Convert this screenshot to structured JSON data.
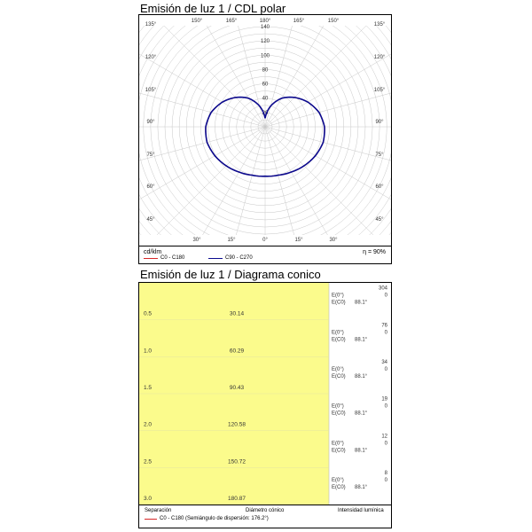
{
  "polar": {
    "title": "Emisión de luz 1 / CDL polar",
    "unit": "cd/klm",
    "efficiency": "η = 90%",
    "legend": [
      {
        "label": "C0 - C180",
        "color": "#d62728"
      },
      {
        "label": "C90 - C270",
        "color": "#0b0b8f"
      }
    ]
  },
  "cone": {
    "title": "Emisión de luz 1 / Diagrama conico",
    "footer": {
      "separation": "Separación",
      "diameter": "Diámetro cónico",
      "intensity": "Intensidad lumínica",
      "legend_label": "C0 - C180 (Semiángulo de dispersión: 176.2°)"
    },
    "e0_label": "E(0°)",
    "ec0_label": "E(C0)",
    "angle_label": "88.1°"
  },
  "chart_data": [
    {
      "type": "line",
      "subtype": "polar",
      "title": "Emisión de luz 1 / CDL polar",
      "radial_unit": "cd/klm",
      "radial_ticks": [
        20,
        40,
        60,
        80,
        100,
        120,
        140
      ],
      "rlim": [
        0,
        140
      ],
      "grid": true,
      "angle_labels": {
        "left": [
          "135°",
          "120°",
          "105°",
          "90°",
          "75°",
          "60°",
          "45°"
        ],
        "right": [
          "135°",
          "120°",
          "105°",
          "90°",
          "75°",
          "60°",
          "45°"
        ],
        "top": [
          "150°",
          "165°",
          "180°",
          "165°",
          "150°"
        ],
        "bottom": [
          "30°",
          "15°",
          "0°",
          "15°",
          "30°"
        ]
      },
      "series": [
        {
          "name": "C0 - C180",
          "color": "#d62728",
          "angles": [
            0,
            15,
            30,
            45,
            60,
            75,
            90,
            105,
            120,
            135,
            150,
            165,
            175,
            180
          ],
          "values": [
            69,
            70,
            73,
            77,
            81,
            84,
            83,
            78,
            69,
            58,
            46,
            30,
            18,
            12
          ]
        },
        {
          "name": "C90 - C270",
          "color": "#0b0b8f",
          "angles": [
            0,
            15,
            30,
            45,
            60,
            75,
            90,
            105,
            120,
            135,
            150,
            165,
            175,
            180
          ],
          "values": [
            69,
            70,
            73,
            77,
            81,
            84,
            83,
            78,
            69,
            58,
            46,
            30,
            18,
            12
          ]
        }
      ]
    },
    {
      "type": "table",
      "subtype": "cone",
      "title": "Emisión de luz 1 / Diagrama conico",
      "columns": [
        "Separación",
        "Diámetro cónico",
        "Intensidad lumínica"
      ],
      "rows": [
        {
          "separation": "0.5",
          "diameter": "30.14",
          "e0": "304",
          "ec0": "0"
        },
        {
          "separation": "1.0",
          "diameter": "60.29",
          "e0": "76",
          "ec0": "0"
        },
        {
          "separation": "1.5",
          "diameter": "90.43",
          "e0": "34",
          "ec0": "0"
        },
        {
          "separation": "2.0",
          "diameter": "120.58",
          "e0": "19",
          "ec0": "0"
        },
        {
          "separation": "2.5",
          "diameter": "150.72",
          "e0": "12",
          "ec0": "0"
        },
        {
          "separation": "3.0",
          "diameter": "180.87",
          "e0": "8",
          "ec0": "0"
        }
      ]
    }
  ]
}
